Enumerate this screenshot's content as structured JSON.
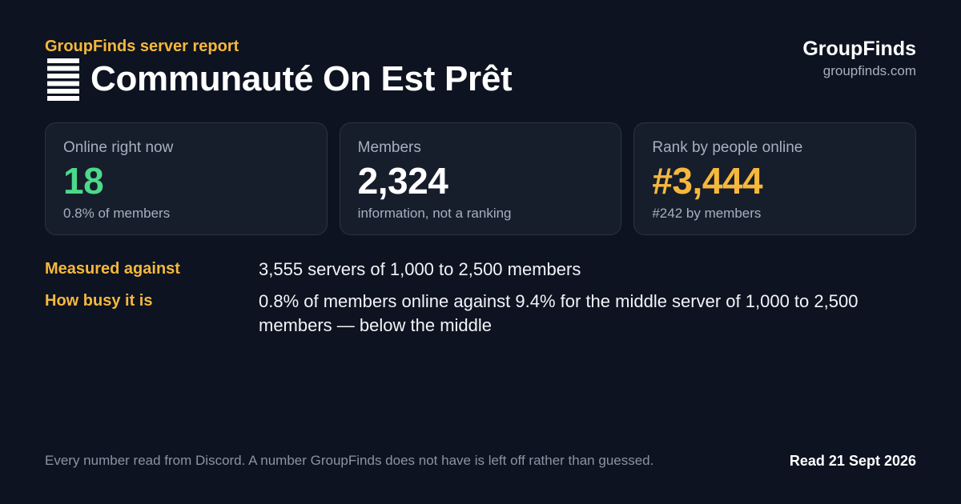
{
  "header": {
    "eyebrow": "GroupFinds server report",
    "server_name": "Communauté On Est Prêt",
    "icon": "server-stack-icon"
  },
  "brand": {
    "name": "GroupFinds",
    "url": "groupfinds.com"
  },
  "cards": [
    {
      "label": "Online right now",
      "value": "18",
      "sub": "0.8% of members",
      "accent": "#4cd98a"
    },
    {
      "label": "Members",
      "value": "2,324",
      "sub": "information, not a ranking",
      "accent": "#ffffff"
    },
    {
      "label": "Rank by people online",
      "value": "#3,444",
      "sub": "#242 by members",
      "accent": "#f5b83d"
    }
  ],
  "facts": [
    {
      "label": "Measured against",
      "value": "3,555 servers of 1,000 to 2,500 members"
    },
    {
      "label": "How busy it is",
      "value": "0.8% of members online against 9.4% for the middle server of 1,000 to 2,500 members — below the middle"
    }
  ],
  "footer": {
    "note": "Every number read from Discord. A number GroupFinds does not have is left off rather than guessed.",
    "read_date": "Read 21 Sept 2026"
  },
  "colors": {
    "background": "#0d1320",
    "card_background": "#161d2b",
    "accent_gold": "#f5b83d",
    "accent_green": "#4cd98a",
    "muted_text": "#a7b0c0"
  }
}
